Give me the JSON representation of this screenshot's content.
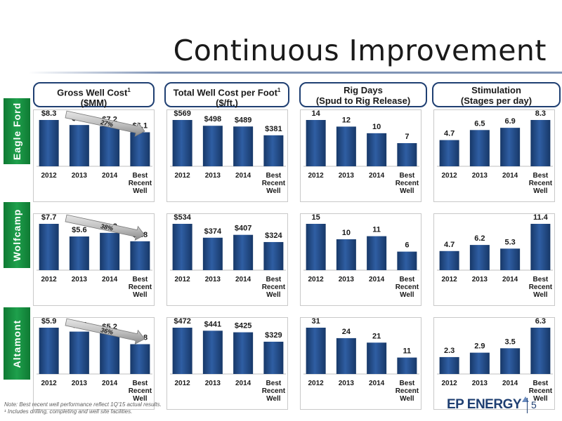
{
  "title": "Continuous Improvement",
  "columns": [
    {
      "line1": "Gross Well Cost",
      "sup": "1",
      "line2": "($MM)"
    },
    {
      "line1": "Total Well Cost per Foot",
      "sup": "1",
      "line2": "($/ft.)"
    },
    {
      "line1": "Rig Days",
      "sup": "",
      "line2": "(Spud to Rig Release)"
    },
    {
      "line1": "Stimulation",
      "sup": "",
      "line2": "(Stages per day)"
    }
  ],
  "rows": [
    "Eagle Ford",
    "Wolfcamp",
    "Altamont"
  ],
  "chart_data": [
    {
      "type": "bar",
      "region": "Eagle Ford",
      "metric": "Gross Well Cost ($MM)",
      "categories": [
        "2012",
        "2013",
        "2014",
        "Best Recent Well"
      ],
      "values": [
        8.3,
        7.4,
        7.2,
        6.1
      ],
      "labels": [
        "$8.3",
        "$7.4",
        "$7.2",
        "$6.1"
      ],
      "annotation": "27%"
    },
    {
      "type": "bar",
      "region": "Eagle Ford",
      "metric": "Total Well Cost per Foot ($/ft.)",
      "categories": [
        "2012",
        "2013",
        "2014",
        "Best Recent Well"
      ],
      "values": [
        569,
        498,
        489,
        381
      ],
      "labels": [
        "$569",
        "$498",
        "$489",
        "$381"
      ],
      "annotation": ""
    },
    {
      "type": "bar",
      "region": "Eagle Ford",
      "metric": "Rig Days (Spud to Rig Release)",
      "categories": [
        "2012",
        "2013",
        "2014",
        "Best Recent Well"
      ],
      "values": [
        14,
        12,
        10,
        7
      ],
      "labels": [
        "14",
        "12",
        "10",
        "7"
      ],
      "annotation": ""
    },
    {
      "type": "bar",
      "region": "Eagle Ford",
      "metric": "Stimulation (Stages per day)",
      "categories": [
        "2012",
        "2013",
        "2014",
        "Best Recent Well"
      ],
      "values": [
        4.7,
        6.5,
        6.9,
        8.3
      ],
      "labels": [
        "4.7",
        "6.5",
        "6.9",
        "8.3"
      ],
      "annotation": ""
    },
    {
      "type": "bar",
      "region": "Wolfcamp",
      "metric": "Gross Well Cost ($MM)",
      "categories": [
        "2012",
        "2013",
        "2014",
        "Best Recent Well"
      ],
      "values": [
        7.7,
        5.6,
        6.2,
        4.8
      ],
      "labels": [
        "$7.7",
        "$5.6",
        "$6.2",
        "$4.8"
      ],
      "annotation": "38%"
    },
    {
      "type": "bar",
      "region": "Wolfcamp",
      "metric": "Total Well Cost per Foot ($/ft.)",
      "categories": [
        "2012",
        "2013",
        "2014",
        "Best Recent Well"
      ],
      "values": [
        534,
        374,
        407,
        324
      ],
      "labels": [
        "$534",
        "$374",
        "$407",
        "$324"
      ],
      "annotation": ""
    },
    {
      "type": "bar",
      "region": "Wolfcamp",
      "metric": "Rig Days (Spud to Rig Release)",
      "categories": [
        "2012",
        "2013",
        "2014",
        "Best Recent Well"
      ],
      "values": [
        15,
        10,
        11,
        6
      ],
      "labels": [
        "15",
        "10",
        "11",
        "6"
      ],
      "annotation": ""
    },
    {
      "type": "bar",
      "region": "Wolfcamp",
      "metric": "Stimulation (Stages per day)",
      "categories": [
        "2012",
        "2013",
        "2014",
        "Best Recent Well"
      ],
      "values": [
        4.7,
        6.2,
        5.3,
        11.4
      ],
      "labels": [
        "4.7",
        "6.2",
        "5.3",
        "11.4"
      ],
      "annotation": ""
    },
    {
      "type": "bar",
      "region": "Altamont",
      "metric": "Gross Well Cost ($MM)",
      "categories": [
        "2012",
        "2013",
        "2014",
        "Best Recent Well"
      ],
      "values": [
        5.9,
        5.4,
        5.2,
        3.8
      ],
      "labels": [
        "$5.9",
        "$5.4",
        "$5.2",
        "$3.8"
      ],
      "annotation": "36%"
    },
    {
      "type": "bar",
      "region": "Altamont",
      "metric": "Total Well Cost per Foot ($/ft.)",
      "categories": [
        "2012",
        "2013",
        "2014",
        "Best Recent Well"
      ],
      "values": [
        472,
        441,
        425,
        329
      ],
      "labels": [
        "$472",
        "$441",
        "$425",
        "$329"
      ],
      "annotation": ""
    },
    {
      "type": "bar",
      "region": "Altamont",
      "metric": "Rig Days (Spud to Rig Release)",
      "categories": [
        "2012",
        "2013",
        "2014",
        "Best Recent Well"
      ],
      "values": [
        31,
        24,
        21,
        11
      ],
      "labels": [
        "31",
        "24",
        "21",
        "11"
      ],
      "annotation": ""
    },
    {
      "type": "bar",
      "region": "Altamont",
      "metric": "Stimulation (Stages per day)",
      "categories": [
        "2012",
        "2013",
        "2014",
        "Best Recent Well"
      ],
      "values": [
        2.3,
        2.9,
        3.5,
        6.3
      ],
      "labels": [
        "2.3",
        "2.9",
        "3.5",
        "6.3"
      ],
      "annotation": ""
    }
  ],
  "footnotes": [
    "Note: Best recent well performance reflect 1Q'15 actual results.",
    "¹ Includes drilling, completing and well site facilities."
  ],
  "logo": {
    "text": "EP ENERGY"
  },
  "page_number": "5",
  "colors": {
    "bar_dark": "#173868",
    "bar_light": "#2f5ea3",
    "row_label": "#1a9445",
    "header_border": "#1f3f72",
    "arrow": "#8a8a8a"
  }
}
